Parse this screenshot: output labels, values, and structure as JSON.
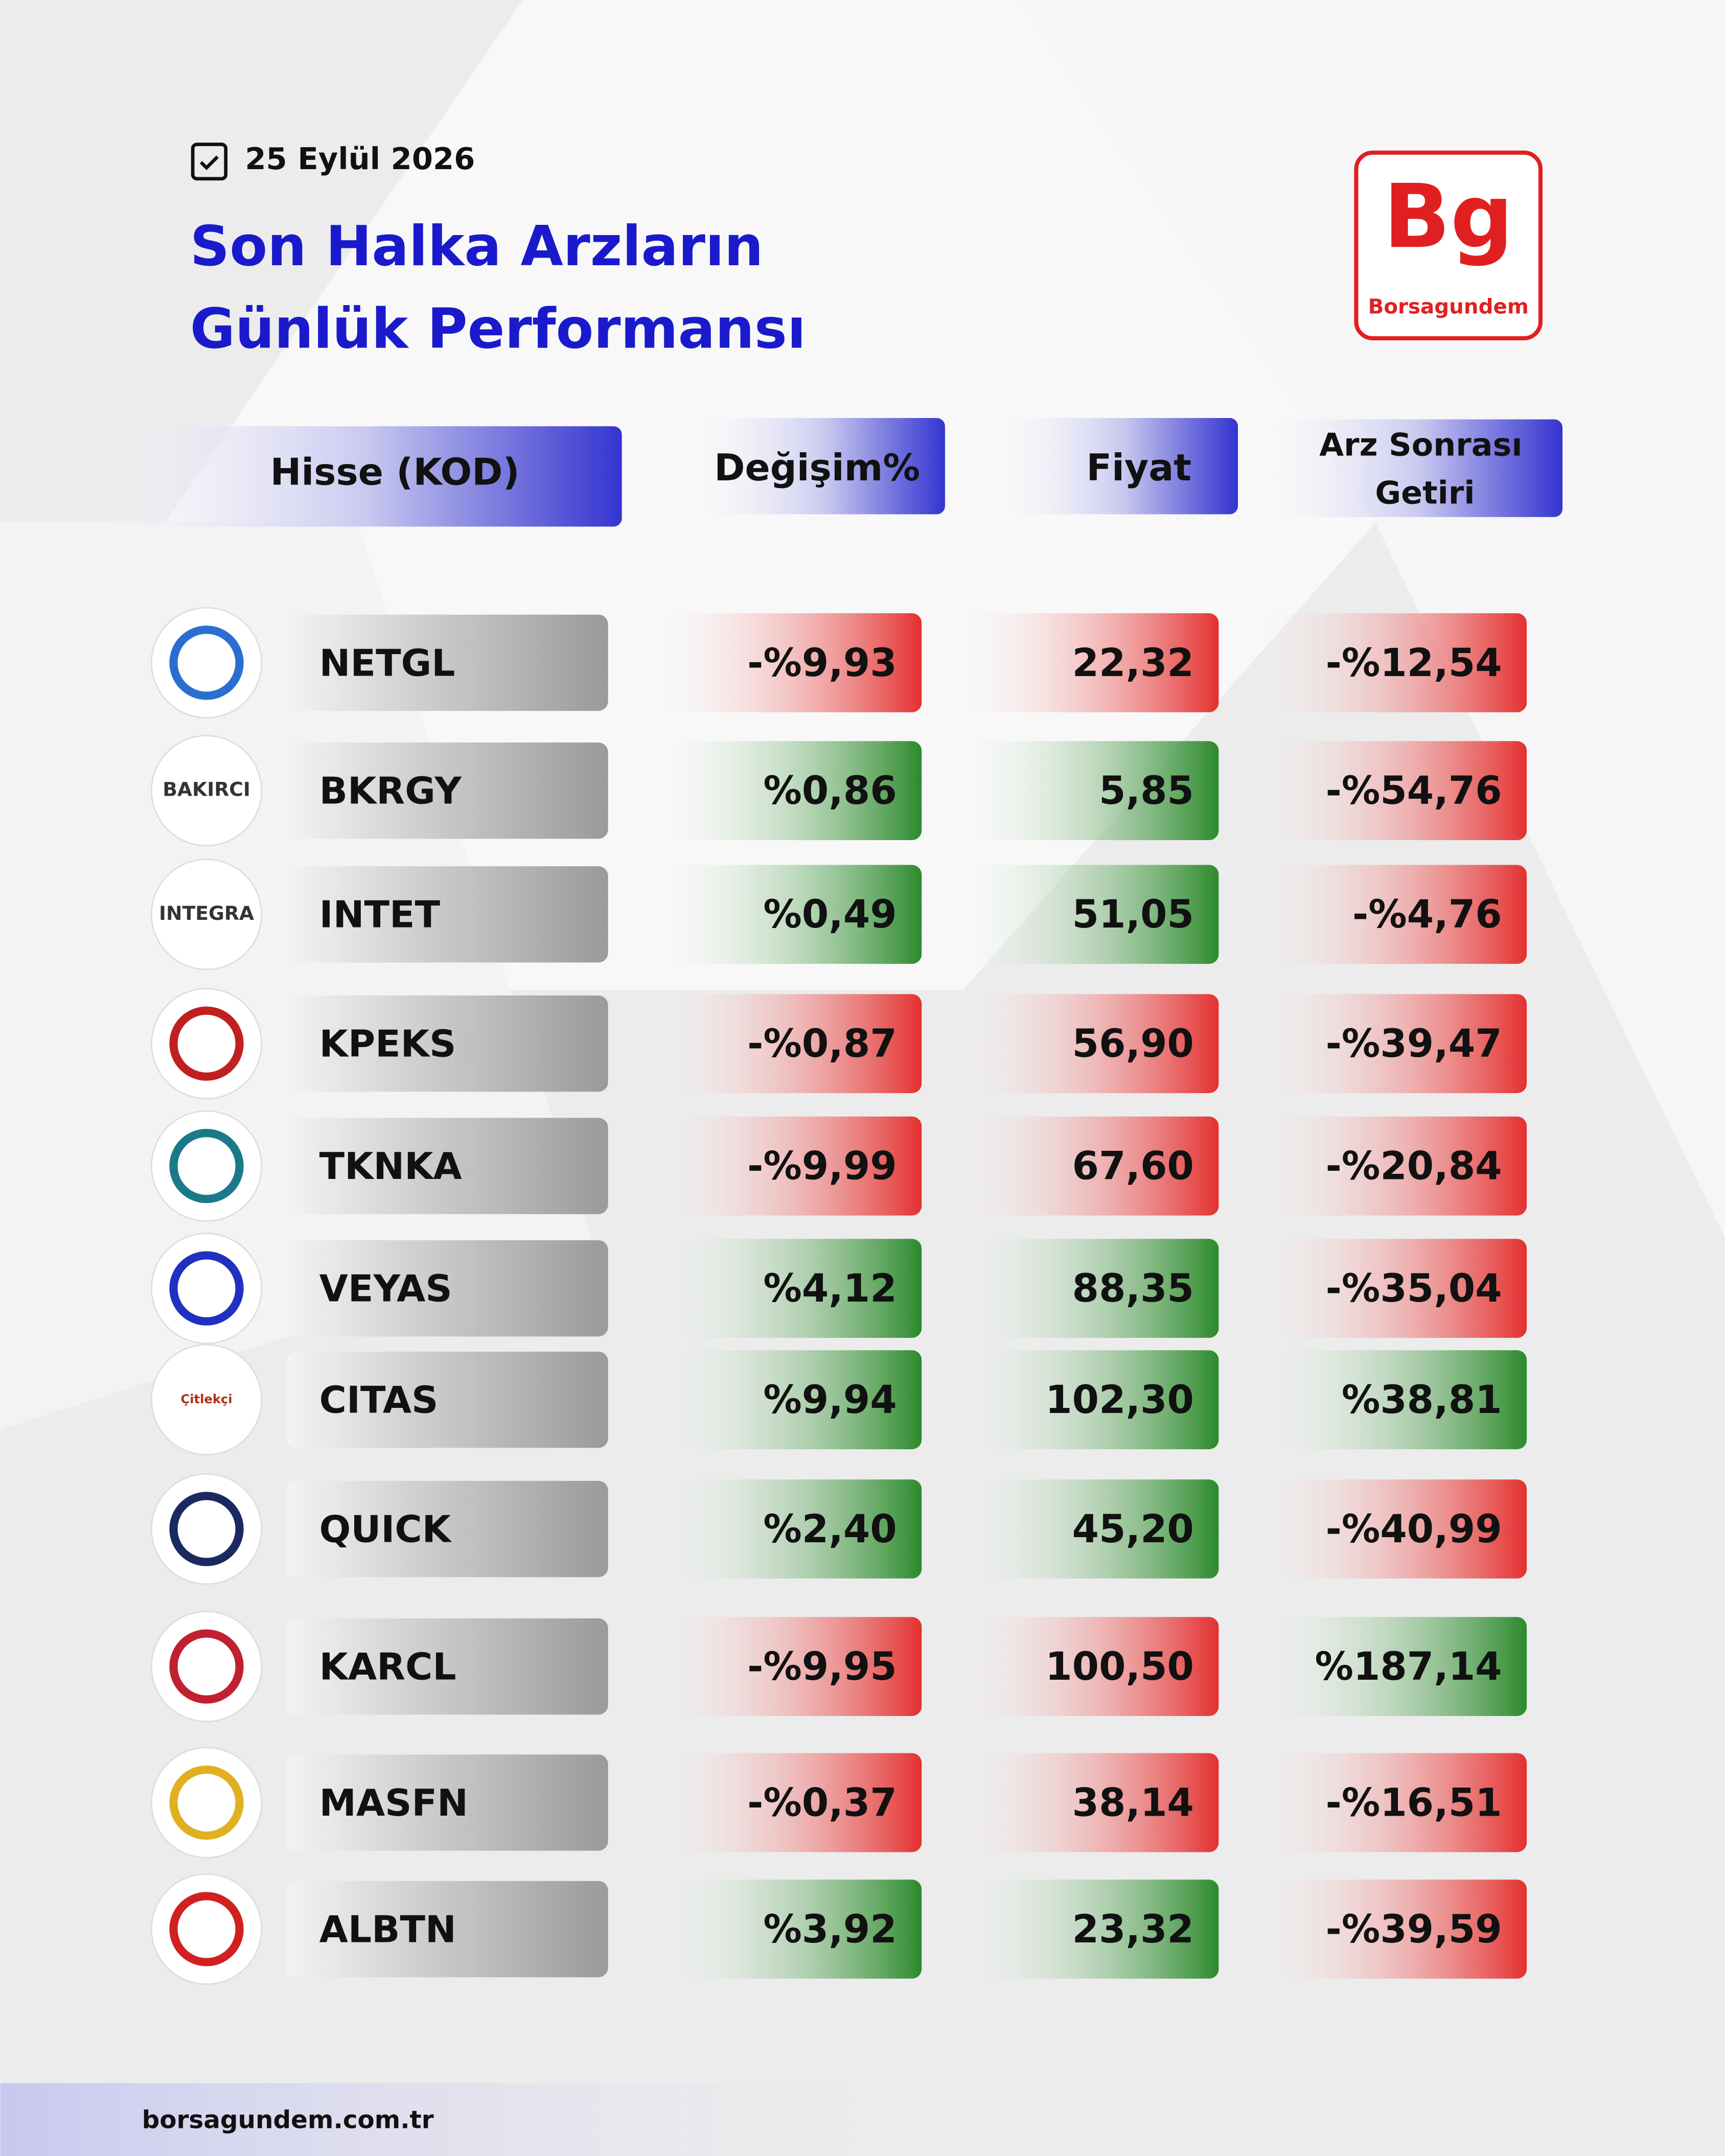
{
  "header": {
    "date": "25 Eylül 2026",
    "title_line1": "Son Halka Arzların",
    "title_line2": "Günlük Performansı",
    "brand_mark": "Bg",
    "brand_name": "Borsagundem"
  },
  "table": {
    "columns": [
      "Hisse (KOD)",
      "Değişim%",
      "Fiyat",
      "Arz Sonrası",
      "Getiri"
    ],
    "rows": [
      {
        "code": "NETGL",
        "change": "-%9,93",
        "price": "22,32",
        "return": "-%12,54"
      },
      {
        "code": "BKRGY",
        "change": "%0,86",
        "price": "5,85",
        "return": "-%54,76",
        "logo_text": "BAKIRCI"
      },
      {
        "code": "INTET",
        "change": "%0,49",
        "price": "51,05",
        "return": "-%4,76",
        "logo_text": "INTEGRA"
      },
      {
        "code": "KPEKS",
        "change": "-%0,87",
        "price": "56,90",
        "return": "-%39,47"
      },
      {
        "code": "TKNKA",
        "change": "-%9,99",
        "price": "67,60",
        "return": "-%20,84"
      },
      {
        "code": "VEYAS",
        "change": "%4,12",
        "price": "88,35",
        "return": "-%35,04"
      },
      {
        "code": "CITAS",
        "change": "%9,94",
        "price": "102,30",
        "return": "%38,81",
        "logo_text": "Çitlekçi"
      },
      {
        "code": "QUICK",
        "change": "%2,40",
        "price": "45,20",
        "return": "-%40,99"
      },
      {
        "code": "KARCL",
        "change": "-%9,95",
        "price": "100,50",
        "return": "%187,14"
      },
      {
        "code": "MASFN",
        "change": "-%0,37",
        "price": "38,14",
        "return": "-%16,51"
      },
      {
        "code": "ALBTN",
        "change": "%3,92",
        "price": "23,32",
        "return": "-%39,59"
      }
    ]
  },
  "footer": {
    "url": "borsagundem.com.tr"
  }
}
